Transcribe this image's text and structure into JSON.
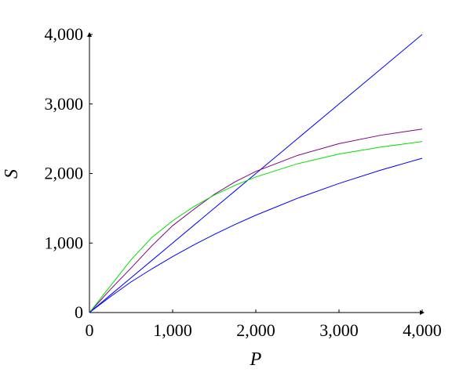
{
  "chart_data": {
    "type": "line",
    "x_label": "P",
    "y_label": "S",
    "x": [
      0,
      250,
      500,
      750,
      1000,
      1250,
      1500,
      1750,
      2000,
      2500,
      3000,
      3500,
      4000
    ],
    "series": [
      {
        "color": "#0000ff",
        "values": [
          0,
          250,
          500,
          750,
          1000,
          1250,
          1500,
          1750,
          2000,
          2500,
          3000,
          3500,
          4000
        ]
      },
      {
        "color": "#800080",
        "values": [
          0,
          330,
          640,
          960,
          1250,
          1480,
          1700,
          1880,
          2030,
          2260,
          2430,
          2550,
          2640
        ]
      },
      {
        "color": "#00e000",
        "values": [
          0,
          380,
          760,
          1080,
          1320,
          1520,
          1690,
          1830,
          1950,
          2140,
          2280,
          2380,
          2460
        ]
      },
      {
        "color": "#0000ff",
        "values": [
          0,
          227,
          441,
          628,
          805,
          970,
          1123,
          1267,
          1400,
          1643,
          1857,
          2048,
          2220
        ]
      }
    ],
    "xlim": [
      0,
      4000
    ],
    "ylim": [
      0,
      4000
    ],
    "xticks": [
      0,
      {
        "value": 1000,
        "label": "1,000"
      },
      {
        "value": 2000,
        "label": "2,000"
      },
      {
        "value": 3000,
        "label": "3,000"
      },
      {
        "value": 4000,
        "label": "4,000"
      }
    ],
    "yticks": [
      0,
      {
        "value": 1000,
        "label": "1,000"
      },
      {
        "value": 2000,
        "label": "2,000"
      },
      {
        "value": 3000,
        "label": "3,000"
      },
      {
        "value": 4000,
        "label": "4,000"
      }
    ],
    "grid": false
  }
}
